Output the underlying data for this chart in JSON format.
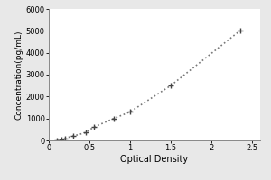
{
  "x_data": [
    0.1,
    0.15,
    0.2,
    0.3,
    0.45,
    0.55,
    0.8,
    1.0,
    1.5,
    2.35
  ],
  "y_data": [
    0,
    50,
    100,
    200,
    350,
    600,
    1000,
    1300,
    2500,
    5000
  ],
  "xlabel": "Optical Density",
  "ylabel": "Concentration(pg/mL)",
  "xlim": [
    0,
    2.6
  ],
  "ylim": [
    0,
    6000
  ],
  "xticks": [
    0,
    0.5,
    1.0,
    1.5,
    2.0,
    2.5
  ],
  "xticklabels": [
    "0",
    "0.5",
    "1",
    "1.5",
    "2",
    "2.5"
  ],
  "yticks": [
    0,
    1000,
    2000,
    3000,
    4000,
    5000,
    6000
  ],
  "yticklabels": [
    "0",
    "1000",
    "2000",
    "3000",
    "4000",
    "5000",
    "6000"
  ],
  "line_color": "#777777",
  "marker_color": "#444444",
  "bg_color": "#e8e8e8",
  "plot_bg": "#ffffff",
  "linestyle": "dotted",
  "linewidth": 1.2,
  "marker_size": 20,
  "marker_linewidth": 1.0,
  "xlabel_fontsize": 7,
  "ylabel_fontsize": 6.5,
  "tick_fontsize": 6.0
}
